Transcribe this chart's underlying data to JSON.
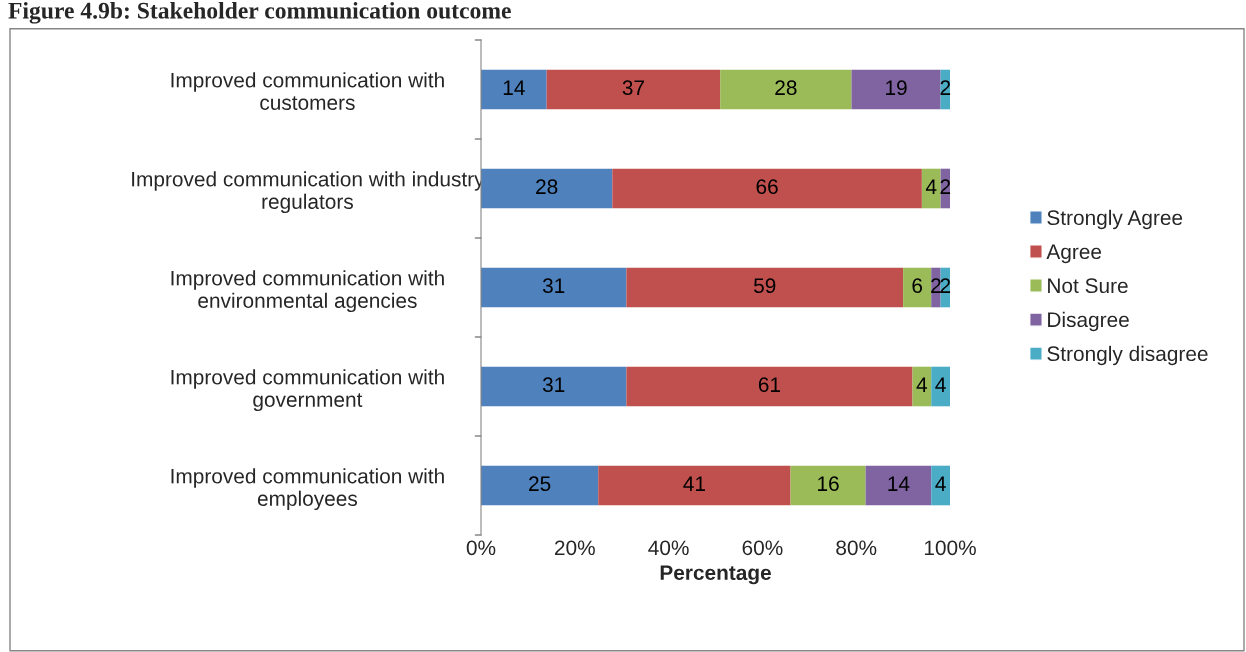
{
  "chart_data": {
    "type": "bar",
    "orientation": "horizontal",
    "stacked": true,
    "title": "Figure 4.9b: Stakeholder communication outcome",
    "xlabel": "Percentage",
    "categories": [
      "Improved communication with\ncustomers",
      "Improved communication with industry\nregulators",
      "Improved communication with\nenvironmental agencies",
      "Improved communication with\ngovernment",
      "Improved communication with\nemployees"
    ],
    "series": [
      {
        "name": "Strongly Agree",
        "color": "#4f81bd",
        "values": [
          14,
          28,
          31,
          31,
          25
        ]
      },
      {
        "name": "Agree",
        "color": "#c0504d",
        "values": [
          37,
          66,
          59,
          61,
          41
        ]
      },
      {
        "name": "Not Sure",
        "color": "#9bbb59",
        "values": [
          28,
          4,
          6,
          4,
          16
        ]
      },
      {
        "name": "Disagree",
        "color": "#8064a2",
        "values": [
          19,
          2,
          2,
          null,
          14
        ]
      },
      {
        "name": "Strongly disagree",
        "color": "#4bacc6",
        "values": [
          2,
          null,
          2,
          4,
          4
        ]
      }
    ],
    "xlim": [
      0,
      100
    ],
    "xticks": [
      {
        "value": 0,
        "label": "0%"
      },
      {
        "value": 20,
        "label": "20%"
      },
      {
        "value": 40,
        "label": "40%"
      },
      {
        "value": 60,
        "label": "60%"
      },
      {
        "value": 80,
        "label": "80%"
      },
      {
        "value": 100,
        "label": "100%"
      }
    ],
    "data_labels": true,
    "legend": "right",
    "grid": false
  }
}
